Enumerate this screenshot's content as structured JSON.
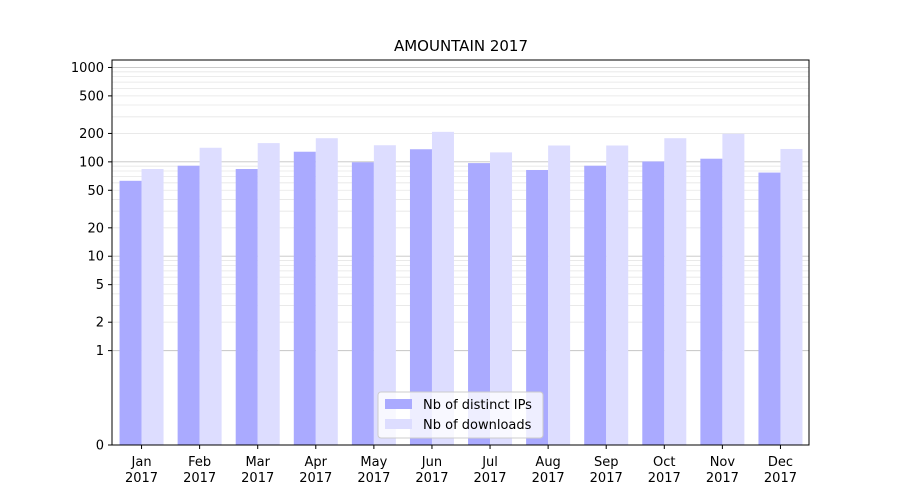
{
  "chart_data": {
    "type": "bar",
    "title": "AMOUNTAIN 2017",
    "xlabel": "",
    "ylabel": "",
    "yscale": "symlog",
    "ylim": [
      0,
      1200
    ],
    "yticks": [
      0,
      1,
      2,
      5,
      10,
      20,
      50,
      100,
      200,
      500,
      1000
    ],
    "categories": [
      "Jan\n2017",
      "Feb\n2017",
      "Mar\n2017",
      "Apr\n2017",
      "May\n2017",
      "Jun\n2017",
      "Jul\n2017",
      "Aug\n2017",
      "Sep\n2017",
      "Oct\n2017",
      "Nov\n2017",
      "Dec\n2017"
    ],
    "series": [
      {
        "name": "Nb of distinct IPs",
        "color": "#aaaaff",
        "values": [
          63,
          91,
          84,
          128,
          99,
          136,
          97,
          82,
          91,
          101,
          108,
          77
        ]
      },
      {
        "name": "Nb of downloads",
        "color": "#ddddff",
        "values": [
          84,
          141,
          158,
          178,
          150,
          208,
          126,
          149,
          149,
          178,
          198,
          137
        ]
      }
    ],
    "grid": true,
    "legend_position": "bottom-center"
  }
}
